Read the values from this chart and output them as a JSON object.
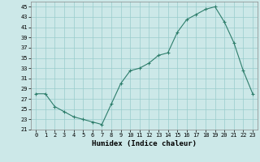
{
  "x": [
    0,
    1,
    2,
    3,
    4,
    5,
    6,
    7,
    8,
    9,
    10,
    11,
    12,
    13,
    14,
    15,
    16,
    17,
    18,
    19,
    20,
    21,
    22,
    23
  ],
  "y": [
    28,
    28,
    25.5,
    24.5,
    23.5,
    23,
    22.5,
    22,
    26,
    30,
    32.5,
    33,
    34,
    35.5,
    36,
    40,
    42.5,
    43.5,
    44.5,
    45,
    42,
    38,
    32.5,
    28
  ],
  "line_color": "#2d7d6b",
  "marker_color": "#2d7d6b",
  "bg_color": "#cce8e8",
  "grid_color": "#99cccc",
  "xlabel": "Humidex (Indice chaleur)",
  "ylim": [
    21,
    46
  ],
  "xlim": [
    -0.5,
    23.5
  ],
  "yticks": [
    21,
    23,
    25,
    27,
    29,
    31,
    33,
    35,
    37,
    39,
    41,
    43,
    45
  ],
  "xticks": [
    0,
    1,
    2,
    3,
    4,
    5,
    6,
    7,
    8,
    9,
    10,
    11,
    12,
    13,
    14,
    15,
    16,
    17,
    18,
    19,
    20,
    21,
    22,
    23
  ]
}
